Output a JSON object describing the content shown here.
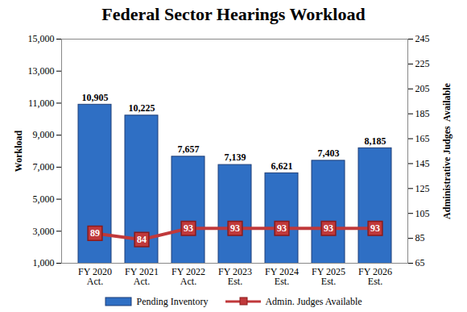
{
  "chart_data": {
    "type": "bar",
    "title": "Federal Sector Hearings Workload",
    "categories": [
      "FY 2020\nAct.",
      "FY 2021\nAct.",
      "FY 2022\nAct.",
      "FY 2023\nEst.",
      "FY 2024\nEst.",
      "FY 2025\nEst.",
      "FY 2026\nEst."
    ],
    "y_label": "Workload",
    "y2_label": "Administrative Judges  Available",
    "series": [
      {
        "name": "Pending Inventory",
        "type": "bar",
        "color": "#2f6fc4",
        "values": [
          10905,
          10225,
          7657,
          7139,
          6621,
          7403,
          8185
        ],
        "value_labels": [
          "10,905",
          "10,225",
          "7,657",
          "7,139",
          "6,621",
          "7,403",
          "8,185"
        ]
      },
      {
        "name": "Admin. Judges Available",
        "type": "line",
        "axis": "y2",
        "color": "#c0393b",
        "marker": "square",
        "values": [
          89,
          84,
          93,
          93,
          93,
          93,
          93
        ]
      }
    ],
    "ylim": [
      1000,
      15000
    ],
    "yticks": [
      {
        "value": 1000,
        "label": "1,000"
      },
      {
        "value": 3000,
        "label": "3,000"
      },
      {
        "value": 5000,
        "label": "5,000"
      },
      {
        "value": 7000,
        "label": "7,000"
      },
      {
        "value": 9000,
        "label": "9,000"
      },
      {
        "value": 11000,
        "label": "11,000"
      },
      {
        "value": 13000,
        "label": "13,000"
      },
      {
        "value": 15000,
        "label": "15,000"
      }
    ],
    "y2lim": [
      65,
      245
    ],
    "y2ticks": [
      65,
      85,
      105,
      125,
      145,
      165,
      185,
      205,
      225,
      245
    ],
    "data_labels": true,
    "legend": "bottom",
    "grid": false
  }
}
